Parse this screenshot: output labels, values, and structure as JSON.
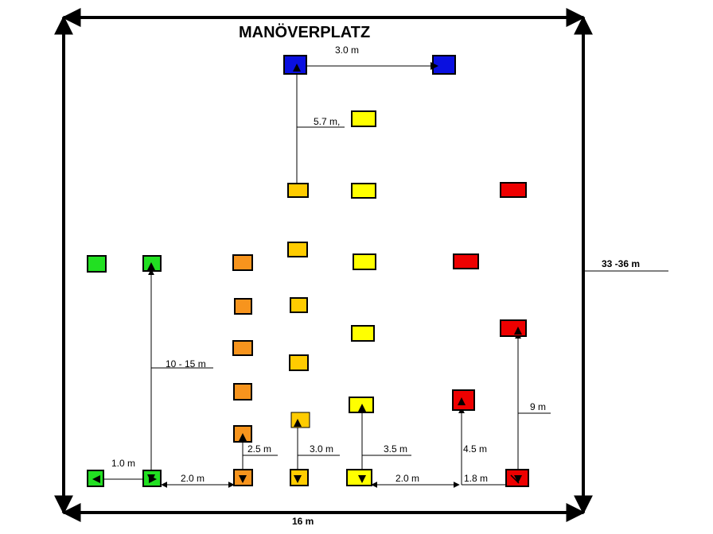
{
  "title": "MANÖVERPLATZ",
  "colors": {
    "green": "#22e022",
    "orange": "#f7941d",
    "gold": "#ffcc00",
    "yellow": "#ffff00",
    "red": "#ee0000",
    "blue": "#0a10e0",
    "outline": "#000000"
  },
  "labels": {
    "width": "16 m",
    "length": "33 -36 m",
    "blue_gap": "3.0 m",
    "up_gap": "5.7 m,",
    "green_gap": "1.0 m",
    "green_long": "10 - 15 m",
    "green_orange": "2.0 m",
    "orange_step": "2.5 m",
    "gold_step": "3.0 m",
    "yellow_step": "3.5 m",
    "yellow_red": "2.0 m",
    "red_step": "4.5 m",
    "red_gap": "1.8 m",
    "red_long": "9 m"
  }
}
